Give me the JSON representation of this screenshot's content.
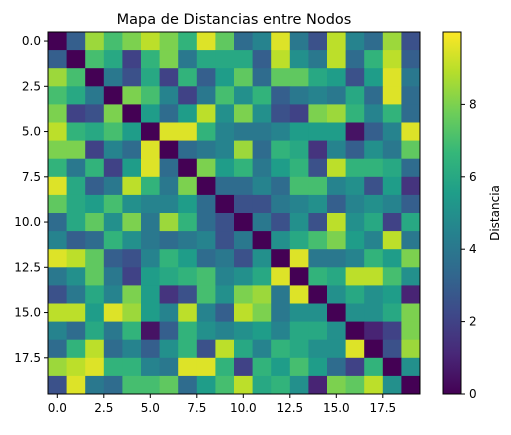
{
  "chart_data": {
    "type": "heatmap",
    "title": "Mapa de Distancias entre Nodos",
    "colormap": "viridis",
    "colormap_stops": [
      "#440154",
      "#482878",
      "#3e4989",
      "#31688e",
      "#26828e",
      "#1f9e89",
      "#35b779",
      "#6ece58",
      "#b5de2b",
      "#fde725"
    ],
    "rows": 20,
    "cols": 20,
    "vmin": 0,
    "vmax": 10,
    "xlim": [
      -0.5,
      19.5
    ],
    "ylim": [
      19.5,
      -0.5
    ],
    "x_ticks": [
      0.0,
      2.5,
      5.0,
      7.5,
      10.0,
      12.5,
      15.0,
      17.5
    ],
    "x_tick_labels": [
      "0.0",
      "2.5",
      "5.0",
      "7.5",
      "10.0",
      "12.5",
      "15.0",
      "17.5"
    ],
    "y_ticks": [
      0.0,
      2.5,
      5.0,
      7.5,
      10.0,
      12.5,
      15.0,
      17.5
    ],
    "y_tick_labels": [
      "0.0",
      "2.5",
      "5.0",
      "7.5",
      "10.0",
      "12.5",
      "15.0",
      "17.5"
    ],
    "colorbar": {
      "label": "Distancia",
      "ticks": [
        0,
        2,
        4,
        6,
        8
      ],
      "tick_labels": [
        "0",
        "2",
        "4",
        "6",
        "8"
      ]
    },
    "values": [
      [
        0.0,
        3.0,
        8.5,
        7.0,
        8.0,
        9.0,
        8.0,
        6.5,
        9.5,
        7.5,
        3.5,
        4.5,
        9.5,
        4.0,
        2.5,
        9.0,
        4.5,
        3.5,
        8.5,
        2.5
      ],
      [
        3.0,
        0.0,
        7.0,
        6.0,
        2.0,
        6.5,
        8.0,
        4.0,
        6.0,
        6.0,
        6.0,
        3.0,
        9.0,
        5.0,
        4.0,
        9.0,
        3.5,
        6.5,
        9.0,
        3.0
      ],
      [
        8.5,
        7.0,
        0.0,
        4.0,
        2.5,
        6.0,
        2.0,
        6.5,
        3.0,
        5.5,
        7.5,
        3.5,
        7.5,
        7.5,
        6.0,
        5.5,
        2.5,
        5.5,
        9.5,
        4.0
      ],
      [
        7.0,
        6.0,
        4.0,
        0.0,
        8.0,
        7.0,
        4.5,
        2.0,
        4.0,
        7.0,
        5.0,
        6.5,
        3.0,
        4.0,
        4.5,
        4.0,
        6.0,
        3.5,
        9.5,
        3.5
      ],
      [
        8.0,
        2.0,
        2.5,
        8.0,
        0.0,
        5.5,
        3.5,
        5.5,
        9.0,
        5.0,
        8.0,
        5.0,
        2.5,
        2.0,
        8.0,
        8.5,
        6.5,
        4.5,
        6.5,
        3.5
      ],
      [
        9.0,
        6.5,
        6.0,
        7.0,
        5.5,
        0.0,
        9.5,
        9.5,
        6.5,
        4.5,
        4.0,
        4.0,
        4.5,
        5.5,
        5.5,
        5.5,
        0.5,
        3.0,
        4.5,
        9.5
      ],
      [
        8.0,
        8.0,
        2.0,
        4.5,
        3.5,
        9.5,
        0.0,
        3.5,
        4.0,
        4.5,
        8.5,
        3.5,
        6.5,
        6.0,
        1.5,
        4.5,
        3.0,
        5.0,
        4.0,
        7.5
      ],
      [
        6.5,
        4.0,
        6.5,
        2.0,
        5.5,
        9.5,
        3.5,
        0.0,
        8.0,
        5.5,
        6.5,
        4.0,
        5.5,
        6.5,
        2.5,
        9.0,
        6.5,
        6.5,
        6.0,
        3.5
      ],
      [
        9.5,
        6.0,
        3.0,
        4.0,
        9.0,
        6.5,
        4.0,
        8.0,
        0.0,
        3.5,
        3.5,
        4.5,
        3.5,
        7.0,
        7.0,
        4.5,
        5.0,
        2.5,
        5.5,
        1.5
      ],
      [
        7.5,
        6.0,
        5.5,
        7.0,
        5.0,
        4.5,
        4.5,
        5.5,
        3.5,
        0.0,
        2.5,
        2.5,
        4.0,
        4.5,
        5.0,
        3.0,
        4.5,
        5.0,
        4.5,
        3.0
      ],
      [
        3.5,
        6.0,
        7.5,
        5.0,
        8.0,
        4.0,
        8.5,
        6.5,
        3.5,
        2.5,
        0.0,
        4.0,
        2.5,
        5.0,
        2.5,
        9.0,
        5.0,
        6.0,
        2.0,
        6.0
      ],
      [
        4.5,
        3.0,
        3.5,
        6.5,
        5.0,
        4.0,
        3.5,
        4.0,
        4.5,
        2.5,
        4.0,
        0.0,
        5.0,
        6.0,
        7.0,
        8.0,
        5.5,
        4.5,
        9.0,
        4.0
      ],
      [
        9.5,
        9.0,
        7.5,
        3.0,
        2.5,
        4.5,
        6.5,
        5.5,
        3.5,
        4.0,
        2.5,
        5.0,
        0.0,
        9.5,
        4.0,
        4.0,
        4.5,
        6.5,
        5.5,
        8.0
      ],
      [
        4.0,
        5.0,
        7.5,
        4.0,
        2.0,
        5.5,
        6.0,
        6.5,
        7.0,
        4.5,
        5.0,
        6.0,
        9.5,
        0.0,
        6.5,
        6.0,
        9.0,
        9.0,
        7.0,
        5.0
      ],
      [
        2.5,
        4.0,
        6.0,
        4.5,
        8.0,
        5.5,
        1.5,
        2.5,
        7.0,
        5.0,
        8.0,
        8.5,
        4.0,
        9.5,
        0.0,
        5.0,
        6.0,
        5.0,
        5.5,
        1.0
      ],
      [
        9.0,
        9.0,
        5.5,
        9.5,
        8.5,
        5.5,
        4.5,
        9.0,
        4.5,
        3.0,
        9.0,
        8.0,
        4.0,
        5.0,
        5.0,
        0.0,
        5.0,
        5.0,
        6.0,
        8.0
      ],
      [
        4.5,
        3.5,
        6.0,
        4.0,
        6.5,
        0.5,
        3.0,
        6.5,
        5.0,
        4.5,
        5.0,
        5.5,
        4.5,
        6.0,
        6.0,
        5.0,
        0.0,
        1.0,
        2.0,
        8.0
      ],
      [
        3.5,
        6.5,
        9.0,
        3.5,
        4.5,
        3.0,
        5.0,
        6.5,
        2.5,
        9.0,
        6.0,
        4.5,
        6.5,
        6.0,
        5.0,
        5.0,
        9.5,
        0.0,
        2.5,
        8.5
      ],
      [
        8.5,
        9.0,
        9.5,
        6.5,
        6.5,
        4.5,
        4.0,
        9.5,
        9.5,
        6.5,
        2.0,
        6.5,
        5.5,
        7.0,
        5.5,
        3.5,
        2.0,
        6.5,
        0.0,
        5.0
      ],
      [
        2.5,
        9.5,
        4.0,
        3.5,
        7.0,
        7.0,
        7.5,
        3.5,
        5.5,
        7.0,
        9.0,
        6.0,
        6.5,
        5.0,
        1.0,
        8.0,
        7.5,
        9.0,
        5.0,
        0.0
      ]
    ]
  }
}
